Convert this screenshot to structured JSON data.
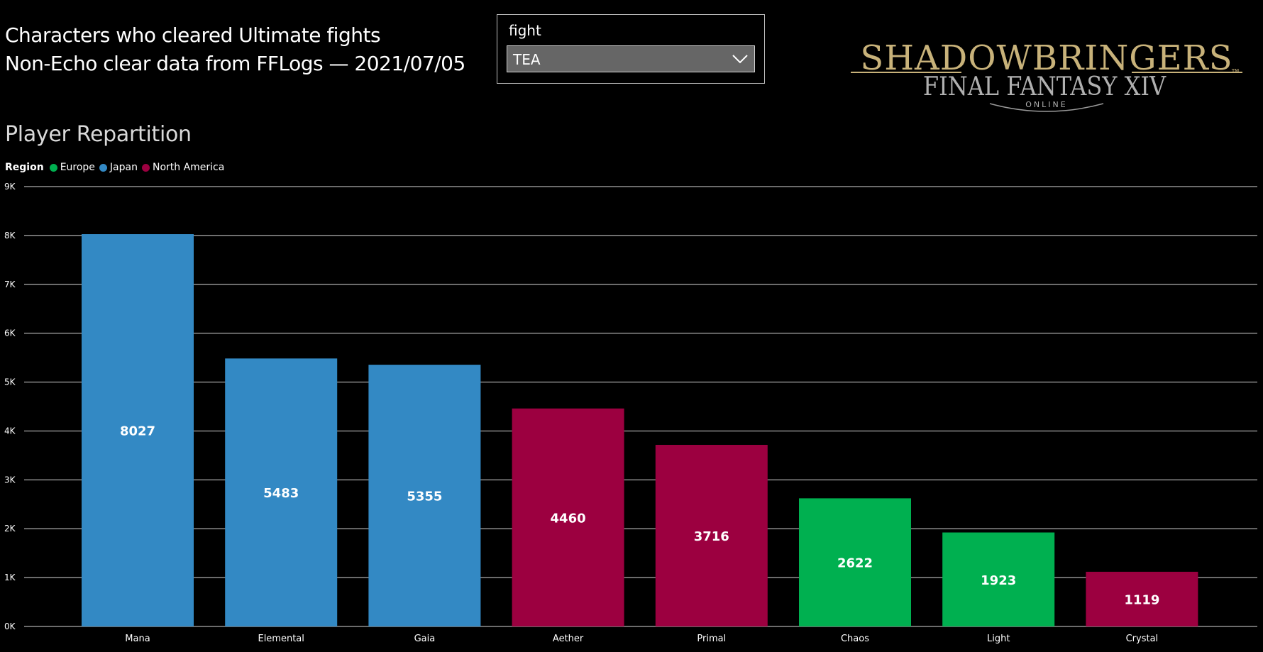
{
  "header": {
    "title_line1": "Characters who cleared Ultimate fights",
    "title_line2": "Non-Echo clear data from FFLogs — 2021/07/05"
  },
  "slicer": {
    "label": "fight",
    "selected": "TEA",
    "chevron_icon": "chevron-down-icon"
  },
  "logo": {
    "main_text": "SHADOWBRINGERS",
    "sub_text": "FINAL FANTASY XIV",
    "online_text": "ONLINE",
    "tm": "TM",
    "color": "#c8b27a"
  },
  "chart_data": {
    "type": "bar",
    "title": "Player Repartition",
    "legend_title": "Region",
    "legend": [
      {
        "name": "Europe",
        "color": "#00b050"
      },
      {
        "name": "Japan",
        "color": "#3389c4"
      },
      {
        "name": "North America",
        "color": "#9c0040"
      }
    ],
    "categories": [
      "Mana",
      "Elemental",
      "Gaia",
      "Aether",
      "Primal",
      "Chaos",
      "Light",
      "Crystal"
    ],
    "values": [
      8027,
      5483,
      5355,
      4460,
      3716,
      2622,
      1923,
      1119
    ],
    "regions": [
      "Japan",
      "Japan",
      "Japan",
      "North America",
      "North America",
      "Europe",
      "Europe",
      "North America"
    ],
    "ylim": [
      0,
      9000
    ],
    "yticks": [
      0,
      1000,
      2000,
      3000,
      4000,
      5000,
      6000,
      7000,
      8000,
      9000
    ],
    "ytick_labels": [
      "0K",
      "1K",
      "2K",
      "3K",
      "4K",
      "5K",
      "6K",
      "7K",
      "8K",
      "9K"
    ],
    "grid": true,
    "xlabel": "",
    "ylabel": ""
  }
}
